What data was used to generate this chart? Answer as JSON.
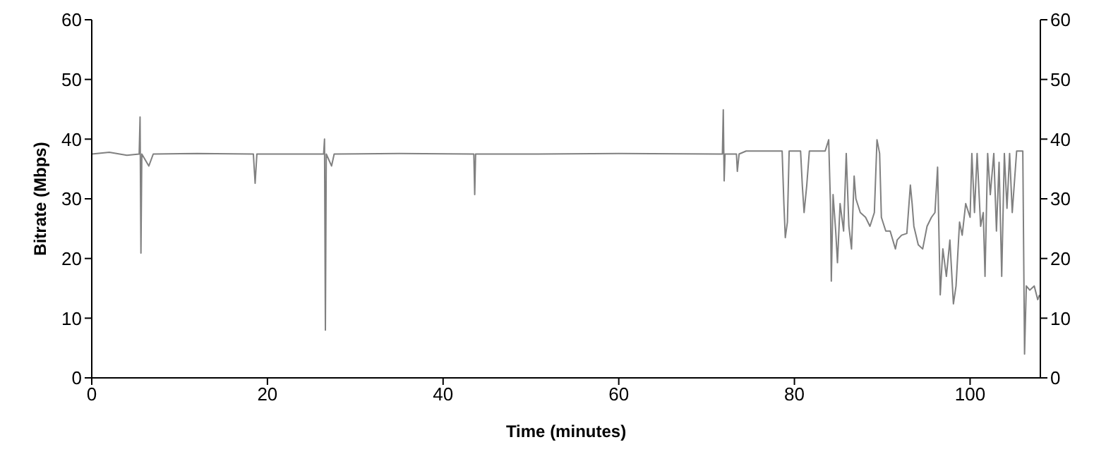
{
  "chart_data": {
    "type": "line",
    "xlabel": "Time (minutes)",
    "ylabel": "Bitrate (Mbps)",
    "xlim": [
      0,
      108
    ],
    "xticks": [
      0,
      20,
      40,
      60,
      80,
      100
    ],
    "ylim": [
      0,
      60
    ],
    "yticks": [
      0,
      10,
      20,
      30,
      40,
      50,
      60
    ],
    "y2lim": [
      0,
      60
    ],
    "y2ticks": [
      0,
      10,
      20,
      30,
      40,
      50,
      60
    ],
    "grid": false,
    "legend": false,
    "marker": "none",
    "line_style": "solid",
    "series": [
      {
        "color": "#808080",
        "x": [
          0,
          2,
          4,
          5.4,
          5.5,
          5.6,
          5.7,
          6.5,
          7,
          12,
          18.4,
          18.6,
          18.8,
          26.4,
          26.5,
          26.6,
          26.7,
          27.3,
          27.6,
          35,
          43.5,
          43.6,
          43.7,
          50,
          60,
          71.8,
          71.9,
          72,
          72.1,
          73.4,
          73.5,
          73.7,
          74.5,
          78.6,
          78.8,
          78.96,
          79.2,
          79.4,
          80.7,
          80.9,
          81.1,
          81.4,
          81.7,
          83.5,
          83.9,
          84.1,
          84.2,
          84.4,
          84.7,
          84.9,
          85.2,
          85.6,
          85.9,
          86.2,
          86.5,
          86.8,
          87,
          87.5,
          88.1,
          88.6,
          89.1,
          89.4,
          89.7,
          89.9,
          90.4,
          90.9,
          91.5,
          91.7,
          92.2,
          92.8,
          93.2,
          93.4,
          93.6,
          94.1,
          94.6,
          95.1,
          95.6,
          96,
          96.3,
          96.6,
          96.9,
          97.3,
          97.7,
          98.1,
          98.4,
          98.8,
          99.1,
          99.5,
          100,
          100.2,
          100.5,
          100.8,
          101.2,
          101.5,
          101.7,
          102,
          102.3,
          102.7,
          103,
          103.3,
          103.6,
          103.9,
          104.2,
          104.5,
          104.8,
          105.3,
          106,
          106.2,
          106.4,
          106.8,
          107.3,
          107.7,
          107.9
        ],
        "values": [
          37.5,
          37.8,
          37.3,
          37.5,
          43.7,
          20.9,
          37.5,
          35.5,
          37.5,
          37.6,
          37.5,
          32.6,
          37.5,
          37.5,
          40,
          8,
          37.5,
          35.5,
          37.5,
          37.6,
          37.5,
          30.7,
          37.5,
          37.5,
          37.6,
          37.5,
          44.9,
          33,
          37.5,
          37.5,
          34.6,
          37.5,
          38,
          38,
          29.2,
          23.5,
          26.1,
          38,
          38,
          32.2,
          27.7,
          32.2,
          38,
          38,
          39.9,
          29.2,
          16.2,
          30.7,
          24.6,
          19.3,
          29.2,
          24.6,
          37.6,
          25.4,
          21.6,
          33.8,
          30,
          27.7,
          26.9,
          25.4,
          27.7,
          39.9,
          37.6,
          26.9,
          24.6,
          24.6,
          21.6,
          23.1,
          23.9,
          24.2,
          32.3,
          29.2,
          25.4,
          22.3,
          21.6,
          25.4,
          26.9,
          27.7,
          35.3,
          13.9,
          21.6,
          17,
          23.1,
          12.4,
          15.4,
          26.1,
          23.9,
          29.2,
          26.9,
          37.6,
          27.7,
          37.6,
          25.4,
          27.7,
          17,
          37.6,
          30.7,
          37.6,
          24.6,
          36.1,
          17,
          37.6,
          28.4,
          37.6,
          27.7,
          38,
          38,
          4,
          15.4,
          14.7,
          15.4,
          13.1,
          13.9
        ]
      }
    ]
  }
}
